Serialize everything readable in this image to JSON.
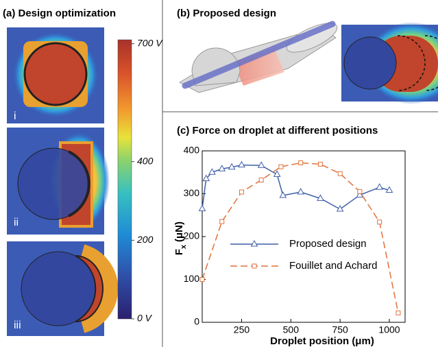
{
  "figure": {
    "panel_a_title": "(a) Design optimization",
    "panel_b_title": "(b) Proposed design",
    "sub_labels": [
      "i",
      "ii",
      "iii"
    ],
    "colorbar": {
      "lim": [
        0,
        710
      ],
      "ticks": [
        {
          "value": 0,
          "label": "0 V"
        },
        200,
        400,
        {
          "value": 700,
          "label": "700 V"
        }
      ]
    }
  },
  "chart_data": {
    "type": "line",
    "title": "(c) Force on droplet at different positions",
    "x_label": "Droplet position (μm)",
    "y_label": "F",
    "y_label_sub": "x",
    "y_label_unit": "(μN)",
    "xlim": [
      50,
      1080
    ],
    "xticks": [
      250,
      500,
      750,
      1000
    ],
    "ylim": [
      0,
      400
    ],
    "yticks": [
      0,
      100,
      200,
      300,
      400
    ],
    "series": [
      {
        "name": "Proposed design",
        "color": "#3f5fa8",
        "marker": "triangle",
        "dash": false,
        "x": [
          50,
          70,
          100,
          150,
          200,
          250,
          350,
          430,
          460,
          550,
          650,
          750,
          850,
          950,
          1000
        ],
        "values": [
          265,
          335,
          350,
          358,
          362,
          367,
          366,
          345,
          296,
          304,
          289,
          264,
          297,
          315,
          308
        ]
      },
      {
        "name": "Fouillet and Achard",
        "color": "#e0703a",
        "marker": "square",
        "dash": true,
        "x": [
          50,
          150,
          250,
          350,
          450,
          550,
          650,
          750,
          850,
          950,
          1045
        ],
        "values": [
          100,
          235,
          304,
          332,
          363,
          372,
          369,
          347,
          305,
          234,
          22
        ]
      }
    ]
  }
}
